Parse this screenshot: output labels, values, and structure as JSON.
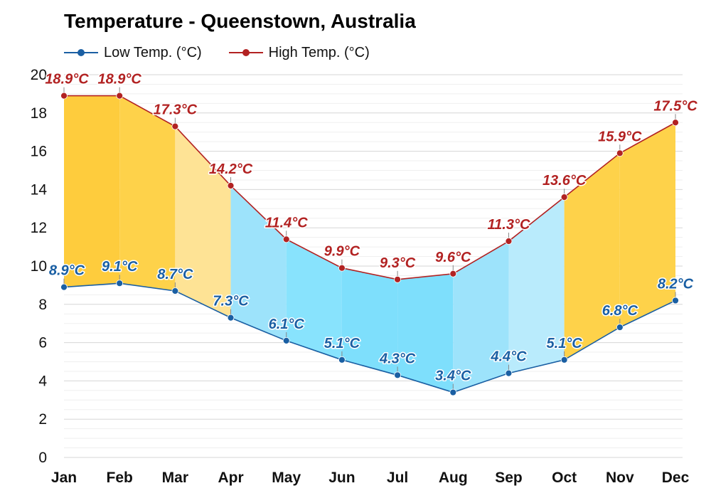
{
  "chart_data": {
    "type": "line",
    "title": "Temperature - Queenstown, Australia",
    "xlabel": "",
    "ylabel": "",
    "categories": [
      "Jan",
      "Feb",
      "Mar",
      "Apr",
      "May",
      "Jun",
      "Jul",
      "Aug",
      "Sep",
      "Oct",
      "Nov",
      "Dec"
    ],
    "ylim": [
      0,
      20
    ],
    "yticks": [
      0,
      2,
      4,
      6,
      8,
      10,
      12,
      14,
      16,
      18,
      20
    ],
    "grid": true,
    "legend_position": "top-left",
    "series": [
      {
        "name": "Low Temp. (°C)",
        "color": "#1a5fa3",
        "label_color": "#1a5fa3",
        "values": [
          8.9,
          9.1,
          8.7,
          7.3,
          6.1,
          5.1,
          4.3,
          3.4,
          4.4,
          5.1,
          6.8,
          8.2
        ],
        "labels": [
          "8.9°C",
          "9.1°C",
          "8.7°C",
          "7.3°C",
          "6.1°C",
          "5.1°C",
          "4.3°C",
          "3.4°C",
          "4.4°C",
          "5.1°C",
          "6.8°C",
          "8.2°C"
        ]
      },
      {
        "name": "High Temp. (°C)",
        "color": "#b22222",
        "label_color": "#b22222",
        "values": [
          18.9,
          18.9,
          17.3,
          14.2,
          11.4,
          9.9,
          9.3,
          9.6,
          11.3,
          13.6,
          15.9,
          17.5
        ],
        "labels": [
          "18.9°C",
          "18.9°C",
          "17.3°C",
          "14.2°C",
          "11.4°C",
          "9.9°C",
          "9.3°C",
          "9.6°C",
          "11.3°C",
          "13.6°C",
          "15.9°C",
          "17.5°C"
        ]
      }
    ],
    "band_fill_colors": [
      "#fecc3d",
      "#fed24a",
      "#fee395",
      "#9de3fb",
      "#88e3fd",
      "#7edffc",
      "#7edffc",
      "#9de3fb",
      "#b9ebfc",
      "#fed24a",
      "#fed24a",
      "#fed24a"
    ]
  }
}
